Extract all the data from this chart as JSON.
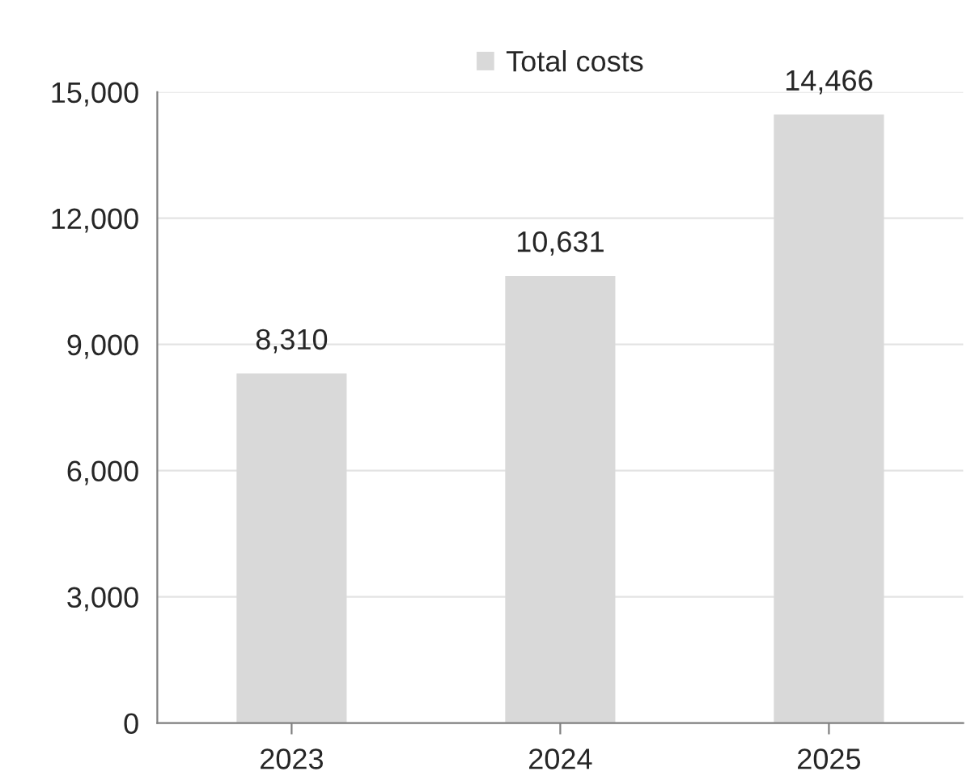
{
  "chart_data": {
    "type": "bar",
    "categories": [
      "2023",
      "2024",
      "2025"
    ],
    "series": [
      {
        "name": "Total costs",
        "color": "#d9d9d9",
        "values": [
          8310,
          10631,
          14466
        ]
      }
    ],
    "value_labels": [
      "8,310",
      "10,631",
      "14,466"
    ],
    "ylim": [
      0,
      15000
    ],
    "yticks": [
      {
        "value": 0,
        "label": "0"
      },
      {
        "value": 3000,
        "label": "3,000"
      },
      {
        "value": 6000,
        "label": "6,000"
      },
      {
        "value": 9000,
        "label": "9,000"
      },
      {
        "value": 12000,
        "label": "12,000"
      },
      {
        "value": 15000,
        "label": "15,000"
      }
    ],
    "grid": "y",
    "legend": "top"
  }
}
